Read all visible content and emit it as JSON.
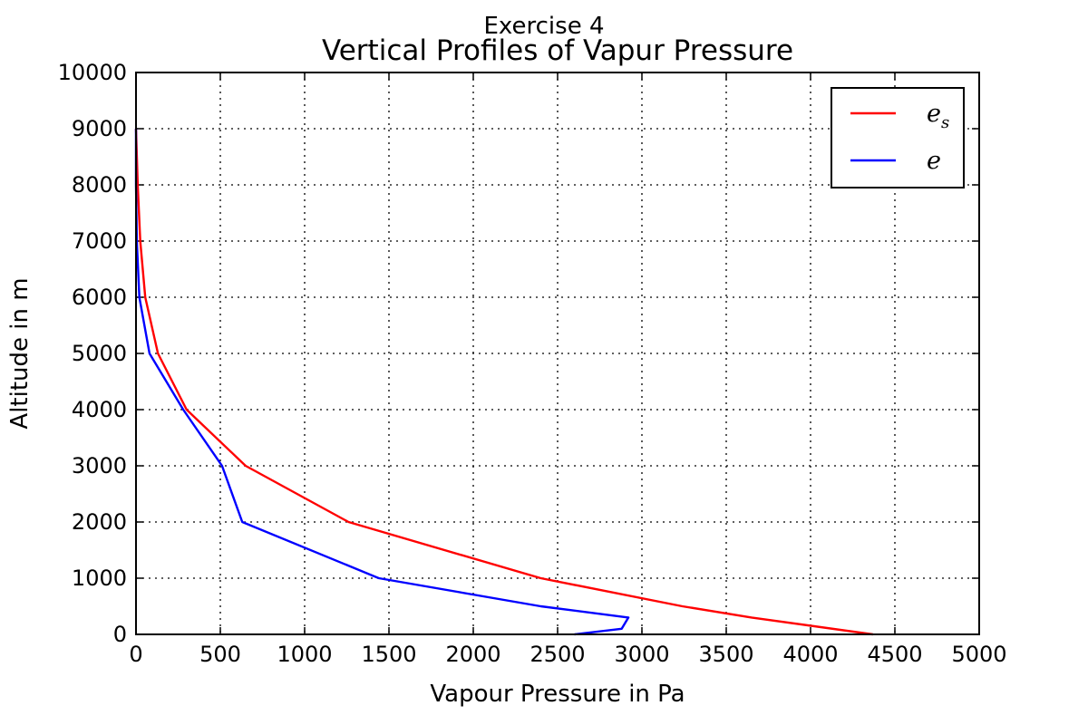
{
  "chart_data": {
    "type": "line",
    "suptitle": "Exercise 4",
    "title": "Vertical Profiles of Vapur Pressure",
    "xlabel": "Vapour Pressure in Pa",
    "ylabel": "Altitude in m",
    "xlim": [
      0,
      5000
    ],
    "ylim": [
      0,
      10000
    ],
    "xticks": [
      "0",
      "500",
      "1000",
      "1500",
      "2000",
      "2500",
      "3000",
      "3500",
      "4000",
      "4500",
      "5000"
    ],
    "yticks": [
      "0",
      "1000",
      "2000",
      "3000",
      "4000",
      "5000",
      "6000",
      "7000",
      "8000",
      "9000",
      "10000"
    ],
    "grid": true,
    "legend_position": "top-right",
    "series": [
      {
        "name": "e",
        "subscript": "s",
        "color": "#ff0000",
        "x": [
          4370,
          3650,
          3240,
          2400,
          1260,
          650,
          300,
          130,
          55,
          25,
          10,
          0
        ],
        "y": [
          0,
          300,
          500,
          1000,
          2000,
          3000,
          4000,
          5000,
          6000,
          7000,
          8000,
          9000
        ]
      },
      {
        "name": "e",
        "subscript": "",
        "color": "#0000ff",
        "x": [
          2600,
          2880,
          2920,
          2400,
          1440,
          630,
          510,
          280,
          80,
          20,
          5,
          0,
          0
        ],
        "y": [
          0,
          100,
          300,
          500,
          1000,
          2000,
          3000,
          4000,
          5000,
          6000,
          7000,
          8000,
          9000
        ]
      }
    ]
  }
}
